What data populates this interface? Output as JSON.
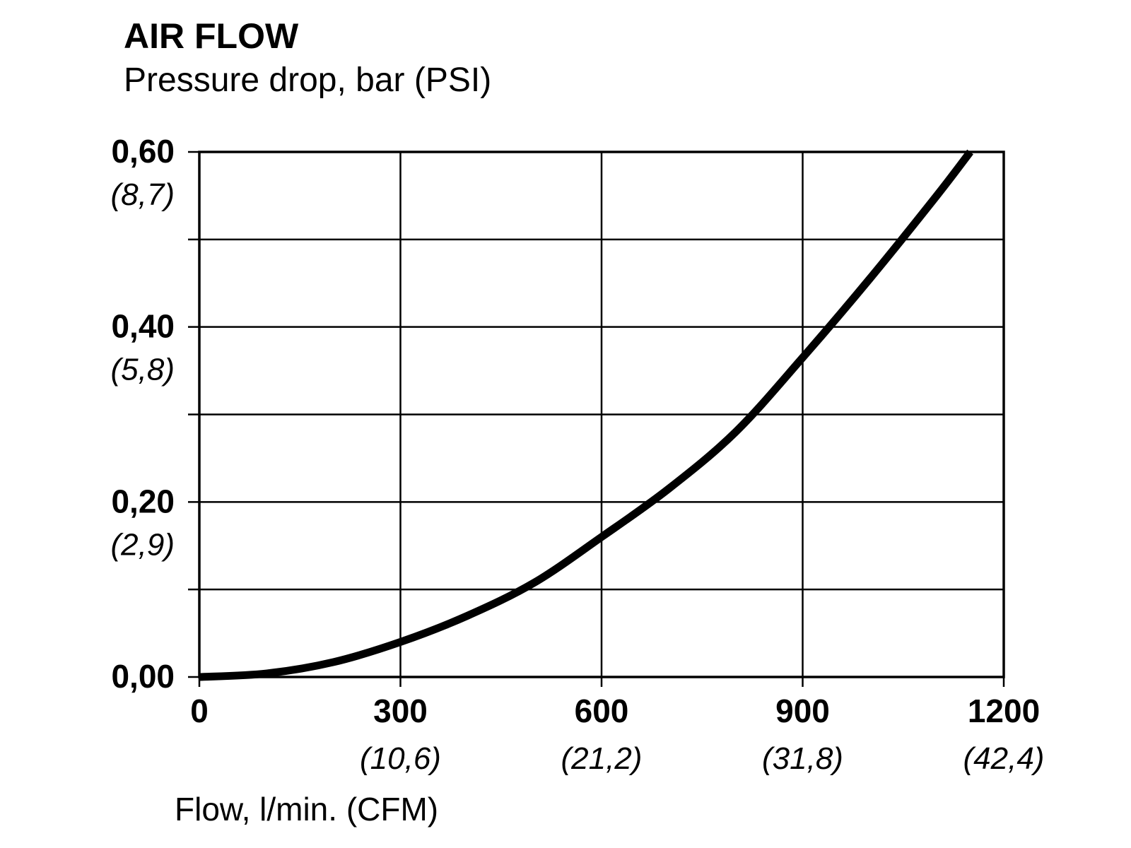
{
  "chart_data": {
    "type": "line",
    "title": "AIR FLOW",
    "ylabel": "Pressure drop, bar (PSI)",
    "xlabel": "Flow, l/min. (CFM)",
    "xlim": [
      0,
      1200
    ],
    "ylim": [
      0,
      0.6
    ],
    "grid": true,
    "x_ticks": [
      {
        "value": 0,
        "label": "0",
        "alt": ""
      },
      {
        "value": 300,
        "label": "300",
        "alt": "(10,6)"
      },
      {
        "value": 600,
        "label": "600",
        "alt": "(21,2)"
      },
      {
        "value": 900,
        "label": "900",
        "alt": "(31,8)"
      },
      {
        "value": 1200,
        "label": "1200",
        "alt": "(42,4)"
      }
    ],
    "y_ticks": [
      {
        "value": 0.0,
        "label": "0,00",
        "alt": ""
      },
      {
        "value": 0.2,
        "label": "0,20",
        "alt": "(2,9)"
      },
      {
        "value": 0.4,
        "label": "0,40",
        "alt": "(5,8)"
      },
      {
        "value": 0.6,
        "label": "0,60",
        "alt": "(8,7)"
      }
    ],
    "y_minor_ticks": [
      0.1,
      0.3,
      0.5
    ],
    "series": [
      {
        "color": "#000000",
        "points": [
          [
            0,
            0
          ],
          [
            100,
            0.004
          ],
          [
            200,
            0.017
          ],
          [
            300,
            0.04
          ],
          [
            400,
            0.07
          ],
          [
            500,
            0.108
          ],
          [
            600,
            0.16
          ],
          [
            700,
            0.215
          ],
          [
            800,
            0.28
          ],
          [
            900,
            0.365
          ],
          [
            1000,
            0.455
          ],
          [
            1100,
            0.55
          ],
          [
            1150,
            0.6
          ]
        ]
      }
    ]
  }
}
